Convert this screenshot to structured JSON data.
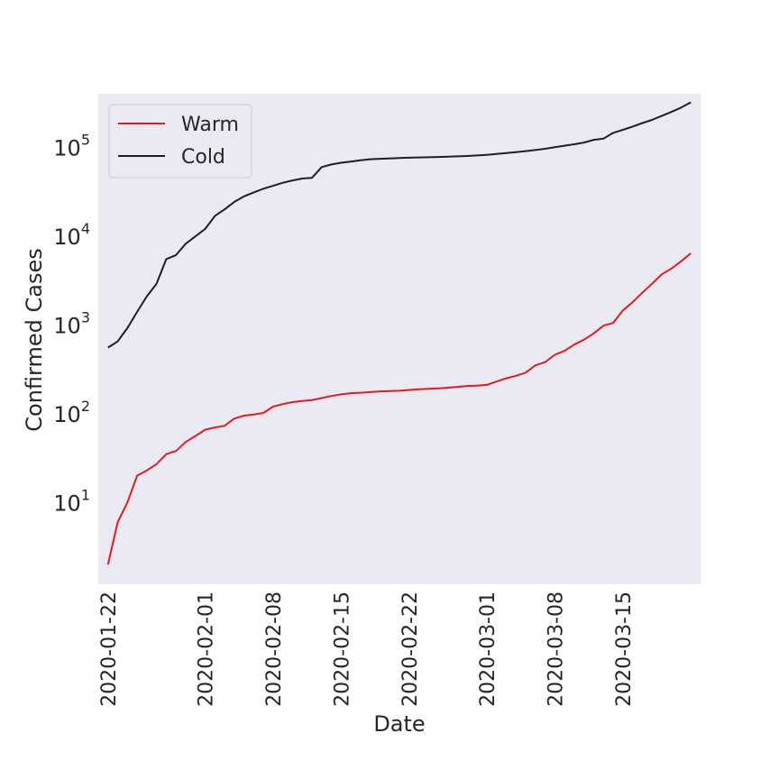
{
  "chart_data": {
    "type": "line",
    "xlabel": "Date",
    "ylabel": "Confirmed Cases",
    "xscale": "date",
    "yscale": "log",
    "xlim": [
      "2020-01-21",
      "2020-03-23"
    ],
    "ylim": [
      1.2,
      400000
    ],
    "grid": false,
    "legend_position": "top-left",
    "x_ticks": [
      "2020-01-22",
      "2020-02-01",
      "2020-02-08",
      "2020-02-15",
      "2020-02-22",
      "2020-03-01",
      "2020-03-08",
      "2020-03-15"
    ],
    "y_ticks": [
      {
        "value": 10,
        "base": "10",
        "exp": "1"
      },
      {
        "value": 100,
        "base": "10",
        "exp": "2"
      },
      {
        "value": 1000,
        "base": "10",
        "exp": "3"
      },
      {
        "value": 10000,
        "base": "10",
        "exp": "4"
      },
      {
        "value": 100000,
        "base": "10",
        "exp": "5"
      }
    ],
    "series": [
      {
        "name": "Warm",
        "color": "#e41a1c",
        "x": [
          "2020-01-22",
          "2020-01-23",
          "2020-01-24",
          "2020-01-25",
          "2020-01-26",
          "2020-01-27",
          "2020-01-28",
          "2020-01-29",
          "2020-01-30",
          "2020-01-31",
          "2020-02-01",
          "2020-02-02",
          "2020-02-03",
          "2020-02-04",
          "2020-02-05",
          "2020-02-06",
          "2020-02-07",
          "2020-02-08",
          "2020-02-09",
          "2020-02-10",
          "2020-02-11",
          "2020-02-12",
          "2020-02-13",
          "2020-02-14",
          "2020-02-15",
          "2020-02-16",
          "2020-02-17",
          "2020-02-18",
          "2020-02-19",
          "2020-02-20",
          "2020-02-21",
          "2020-02-22",
          "2020-02-23",
          "2020-02-24",
          "2020-02-25",
          "2020-02-26",
          "2020-02-27",
          "2020-02-28",
          "2020-02-29",
          "2020-03-01",
          "2020-03-02",
          "2020-03-03",
          "2020-03-04",
          "2020-03-05",
          "2020-03-06",
          "2020-03-07",
          "2020-03-08",
          "2020-03-09",
          "2020-03-10",
          "2020-03-11",
          "2020-03-12",
          "2020-03-13",
          "2020-03-14",
          "2020-03-15",
          "2020-03-16",
          "2020-03-17",
          "2020-03-18",
          "2020-03-19",
          "2020-03-20",
          "2020-03-21",
          "2020-03-22"
        ],
        "values": [
          2,
          6,
          10,
          20,
          23,
          27,
          35,
          38,
          48,
          56,
          66,
          70,
          73,
          88,
          95,
          98,
          102,
          120,
          128,
          135,
          139,
          142,
          150,
          158,
          165,
          170,
          172,
          175,
          178,
          180,
          181,
          185,
          188,
          190,
          193,
          196,
          200,
          205,
          207,
          211,
          230,
          250,
          267,
          290,
          350,
          380,
          460,
          510,
          600,
          680,
          800,
          980,
          1050,
          1450,
          1800,
          2300,
          2900,
          3700,
          4300,
          5200,
          6400
        ]
      },
      {
        "name": "Cold",
        "color": "#1f1f1f",
        "x": [
          "2020-01-22",
          "2020-01-23",
          "2020-01-24",
          "2020-01-25",
          "2020-01-26",
          "2020-01-27",
          "2020-01-28",
          "2020-01-29",
          "2020-01-30",
          "2020-01-31",
          "2020-02-01",
          "2020-02-02",
          "2020-02-03",
          "2020-02-04",
          "2020-02-05",
          "2020-02-06",
          "2020-02-07",
          "2020-02-08",
          "2020-02-09",
          "2020-02-10",
          "2020-02-11",
          "2020-02-12",
          "2020-02-13",
          "2020-02-14",
          "2020-02-15",
          "2020-02-16",
          "2020-02-17",
          "2020-02-18",
          "2020-02-19",
          "2020-02-20",
          "2020-02-21",
          "2020-02-22",
          "2020-02-23",
          "2020-02-24",
          "2020-02-25",
          "2020-02-26",
          "2020-02-27",
          "2020-02-28",
          "2020-02-29",
          "2020-03-01",
          "2020-03-02",
          "2020-03-03",
          "2020-03-04",
          "2020-03-05",
          "2020-03-06",
          "2020-03-07",
          "2020-03-08",
          "2020-03-09",
          "2020-03-10",
          "2020-03-11",
          "2020-03-12",
          "2020-03-13",
          "2020-03-14",
          "2020-03-15",
          "2020-03-16",
          "2020-03-17",
          "2020-03-18",
          "2020-03-19",
          "2020-03-20",
          "2020-03-21",
          "2020-03-22"
        ],
        "values": [
          555,
          650,
          920,
          1400,
          2100,
          2900,
          5500,
          6100,
          8200,
          9900,
          12000,
          16800,
          20000,
          24200,
          28000,
          31000,
          34100,
          36800,
          39800,
          42300,
          44400,
          45200,
          59800,
          64000,
          66900,
          69000,
          71200,
          73200,
          74200,
          74600,
          75600,
          76200,
          76800,
          77200,
          77700,
          78200,
          78900,
          79800,
          80800,
          82100,
          84000,
          86000,
          88000,
          90400,
          93000,
          96000,
          100000,
          104000,
          108000,
          113000,
          121000,
          125000,
          145000,
          157000,
          171000,
          187000,
          203000,
          225000,
          250000,
          280000,
          320000
        ]
      }
    ]
  }
}
